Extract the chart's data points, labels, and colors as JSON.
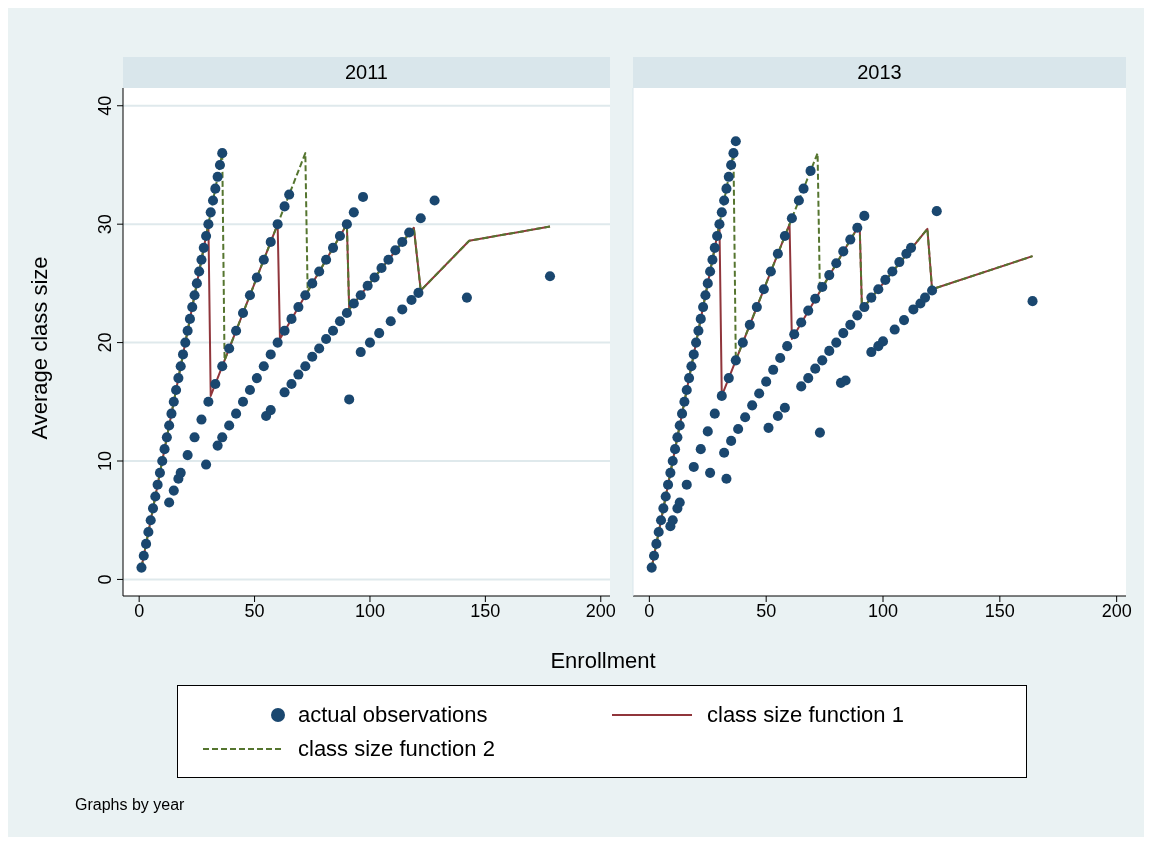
{
  "chart_data": [
    {
      "type": "scatter",
      "title": "2011",
      "xlabel": "Enrollment",
      "ylabel": "Average class size",
      "xlim": [
        -7,
        204
      ],
      "xticks": [
        0,
        50,
        100,
        150,
        200
      ],
      "ylim": [
        -1.4,
        41.5
      ],
      "yticks": [
        0,
        10,
        20,
        30,
        40
      ],
      "grid": "y",
      "legend": "bottom",
      "marker": "circle",
      "annotations": [
        "Graphs by year"
      ],
      "series": [
        {
          "name": "actual observations",
          "color": "#1a476f",
          "x": [
            1,
            2,
            3,
            4,
            5,
            6,
            7,
            8,
            9,
            10,
            11,
            12,
            13,
            14,
            15,
            16,
            17,
            18,
            19,
            20,
            21,
            22,
            23,
            24,
            25,
            26,
            27,
            28,
            29,
            30,
            31,
            32,
            33,
            34,
            35,
            36,
            13,
            15,
            17,
            18,
            21,
            24,
            27,
            30,
            33,
            36,
            39,
            42,
            45,
            48,
            51,
            54,
            57,
            60,
            63,
            65,
            29,
            34,
            36,
            39,
            42,
            45,
            48,
            51,
            54,
            57,
            60,
            63,
            66,
            69,
            72,
            75,
            78,
            81,
            84,
            87,
            90,
            93,
            97,
            55,
            57,
            63,
            66,
            69,
            72,
            75,
            78,
            81,
            84,
            87,
            90,
            93,
            96,
            99,
            102,
            105,
            108,
            111,
            114,
            117,
            122,
            128,
            96,
            100,
            104,
            109,
            114,
            118,
            121,
            91,
            142,
            178
          ],
          "values": [
            1,
            2,
            3,
            4,
            5,
            6,
            7,
            8,
            9,
            10,
            11,
            12,
            13,
            14,
            15,
            16,
            17,
            18,
            19,
            20,
            21,
            22,
            23,
            24,
            25,
            26,
            27,
            28,
            29,
            30,
            31,
            32,
            33,
            34,
            35,
            36,
            6.5,
            7.5,
            8.5,
            9,
            10.5,
            12,
            13.5,
            15,
            16.5,
            18,
            19.5,
            21,
            22.5,
            24,
            25.5,
            27,
            28.5,
            30,
            31.5,
            32.5,
            9.7,
            11.3,
            12,
            13,
            14,
            15,
            16,
            17,
            18,
            19,
            20,
            21,
            22,
            23,
            24,
            25,
            26,
            27,
            28,
            29,
            30,
            31,
            32.3,
            13.8,
            14.3,
            15.8,
            16.5,
            17.3,
            18,
            18.8,
            19.5,
            20.3,
            21,
            21.8,
            22.5,
            23.3,
            24,
            24.8,
            25.5,
            26.3,
            27,
            27.8,
            28.5,
            29.3,
            30.5,
            32,
            19.2,
            20,
            20.8,
            21.8,
            22.8,
            23.6,
            24.2,
            15.2,
            23.8,
            25.6
          ]
        },
        {
          "name": "class size function 1",
          "type": "line",
          "marker": "none",
          "line_style": "solid",
          "color": "#90353b",
          "x": [
            1,
            30,
            31,
            60,
            61,
            90,
            91,
            119,
            122,
            143,
            178
          ],
          "values": [
            1,
            30,
            15.5,
            30,
            20.3,
            30,
            22.8,
            29.7,
            24.4,
            28.6,
            29.8
          ]
        },
        {
          "name": "class size function 2",
          "type": "line",
          "marker": "none",
          "line_style": "dashed",
          "color": "#55752f",
          "x": [
            1,
            36,
            37,
            72,
            73,
            90,
            91,
            119,
            122,
            143,
            178
          ],
          "values": [
            1,
            36,
            18.5,
            36,
            24.3,
            30,
            22.8,
            29.7,
            24.4,
            28.6,
            29.8
          ]
        }
      ]
    },
    {
      "type": "scatter",
      "title": "2013",
      "xlim": [
        -7,
        204
      ],
      "xticks": [
        0,
        50,
        100,
        150,
        200
      ],
      "ylim": [
        -1.4,
        41.5
      ],
      "yticks": [
        0,
        10,
        20,
        30,
        40
      ],
      "tick_labels": "x",
      "grid": "y",
      "marker": "circle",
      "series": [
        {
          "color": "#1a476f",
          "x": [
            1,
            2,
            3,
            4,
            5,
            6,
            7,
            8,
            9,
            10,
            11,
            12,
            13,
            14,
            15,
            16,
            17,
            18,
            19,
            20,
            21,
            22,
            23,
            24,
            25,
            26,
            27,
            28,
            29,
            30,
            31,
            32,
            33,
            34,
            35,
            36,
            37,
            9,
            10,
            12,
            13,
            16,
            19,
            22,
            25,
            28,
            31,
            34,
            37,
            40,
            43,
            46,
            49,
            52,
            55,
            58,
            61,
            64,
            66,
            69,
            26,
            33,
            32,
            35,
            38,
            41,
            44,
            47,
            50,
            53,
            56,
            59,
            62,
            65,
            68,
            71,
            74,
            77,
            80,
            83,
            86,
            89,
            92,
            51,
            55,
            58,
            65,
            68,
            71,
            74,
            77,
            80,
            83,
            86,
            89,
            92,
            95,
            98,
            101,
            104,
            107,
            110,
            112,
            82,
            84,
            95,
            98,
            100,
            105,
            109,
            113,
            116,
            118,
            121,
            73,
            123,
            164
          ],
          "values": [
            1,
            2,
            3,
            4,
            5,
            6,
            7,
            8,
            9,
            10,
            11,
            12,
            13,
            14,
            15,
            16,
            17,
            18,
            19,
            20,
            21,
            22,
            23,
            24,
            25,
            26,
            27,
            28,
            29,
            30,
            31,
            32,
            33,
            34,
            35,
            36,
            37,
            4.5,
            5,
            6,
            6.5,
            8,
            9.5,
            11,
            12.5,
            14,
            15.5,
            17,
            18.5,
            20,
            21.5,
            23,
            24.5,
            26,
            27.5,
            29,
            30.5,
            32,
            33,
            34.5,
            9,
            8.5,
            10.7,
            11.7,
            12.7,
            13.7,
            14.7,
            15.7,
            16.7,
            17.7,
            18.7,
            19.7,
            20.7,
            21.7,
            22.7,
            23.7,
            24.7,
            25.7,
            26.7,
            27.7,
            28.7,
            29.7,
            30.7,
            12.8,
            13.8,
            14.5,
            16.3,
            17,
            17.8,
            18.5,
            19.3,
            20,
            20.8,
            21.5,
            22.3,
            23,
            23.8,
            24.5,
            25.3,
            26,
            26.8,
            27.5,
            28,
            16.6,
            16.8,
            19.2,
            19.7,
            20.1,
            21.1,
            21.9,
            22.8,
            23.3,
            23.8,
            24.4,
            12.4,
            31.1,
            23.5
          ]
        },
        {
          "type": "line",
          "marker": "none",
          "line_style": "solid",
          "color": "#90353b",
          "x": [
            1,
            30,
            31,
            60,
            61,
            90,
            91,
            119,
            121,
            164
          ],
          "values": [
            1,
            30,
            15.5,
            30,
            20.3,
            30,
            22.8,
            29.6,
            24.5,
            27.3
          ]
        },
        {
          "type": "line",
          "marker": "none",
          "line_style": "dashed",
          "color": "#55752f",
          "x": [
            1,
            36,
            37,
            72,
            73,
            90,
            91,
            119,
            121,
            164
          ],
          "values": [
            1,
            36,
            18.5,
            36,
            24.3,
            30,
            22.8,
            29.6,
            24.5,
            27.3
          ]
        }
      ]
    }
  ]
}
